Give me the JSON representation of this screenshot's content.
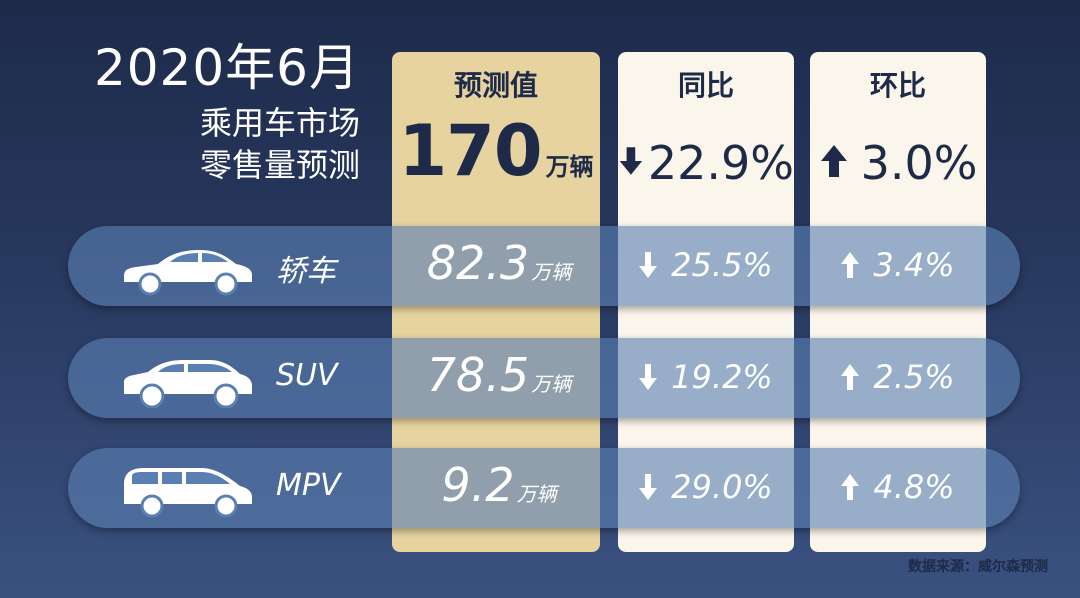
{
  "title": {
    "line1": "2020年6月",
    "line2": "乘用车市场",
    "line3": "零售量预测"
  },
  "columns": {
    "prediction": {
      "header": "预测值",
      "value": "170",
      "unit": "万辆"
    },
    "yoy": {
      "header": "同比",
      "value": "22.9%",
      "direction": "down"
    },
    "mom": {
      "header": "环比",
      "value": "3.0%",
      "direction": "up"
    }
  },
  "rows": [
    {
      "label": "轿车",
      "value": "82.3",
      "unit": "万辆",
      "yoy": "25.5%",
      "yoy_direction": "down",
      "mom": "3.4%",
      "mom_direction": "up",
      "icon": "sedan-icon"
    },
    {
      "label": "SUV",
      "value": "78.5",
      "unit": "万辆",
      "yoy": "19.2%",
      "yoy_direction": "down",
      "mom": "2.5%",
      "mom_direction": "up",
      "icon": "suv-icon"
    },
    {
      "label": "MPV",
      "value": "9.2",
      "unit": "万辆",
      "yoy": "29.0%",
      "yoy_direction": "down",
      "mom": "4.8%",
      "mom_direction": "up",
      "icon": "mpv-icon"
    }
  ],
  "source": "数据来源：威尔森预测",
  "colors": {
    "background_top": "#1d2a4a",
    "background_bottom": "#3a5180",
    "prediction_column": "#e6d3a0",
    "change_columns": "#fbf6ec",
    "row_band": "#5a80b2",
    "dark_text": "#1e2a48"
  }
}
